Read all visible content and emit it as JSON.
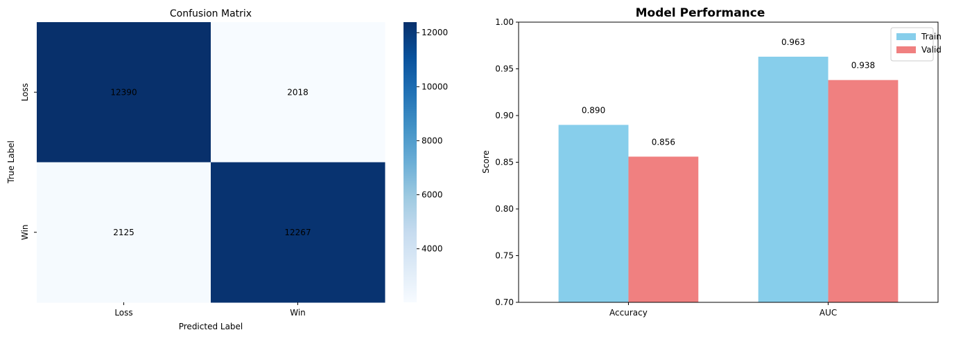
{
  "chart_data": [
    {
      "type": "heatmap",
      "title": "Confusion Matrix",
      "xlabel": "Predicted Label",
      "ylabel": "True Label",
      "x_categories": [
        "Loss",
        "Win"
      ],
      "y_categories": [
        "Loss",
        "Win"
      ],
      "values": [
        [
          12390,
          2018
        ],
        [
          2125,
          12267
        ]
      ],
      "colormap": "Blues",
      "colorbar": {
        "range": [
          2018,
          12390
        ],
        "ticks": [
          4000,
          6000,
          8000,
          10000,
          12000
        ]
      }
    },
    {
      "type": "bar",
      "title": "Model Performance",
      "xlabel": "",
      "ylabel": "Score",
      "categories": [
        "Accuracy",
        "AUC"
      ],
      "ylim": [
        0.7,
        1.0
      ],
      "yticks": [
        0.7,
        0.75,
        0.8,
        0.85,
        0.9,
        0.95,
        1.0
      ],
      "grid": false,
      "legend": "top-right",
      "series": [
        {
          "name": "Train",
          "values": [
            0.89,
            0.963
          ],
          "color": "#87ceeb"
        },
        {
          "name": "Valid",
          "values": [
            0.856,
            0.938
          ],
          "color": "#f08080"
        }
      ]
    }
  ]
}
